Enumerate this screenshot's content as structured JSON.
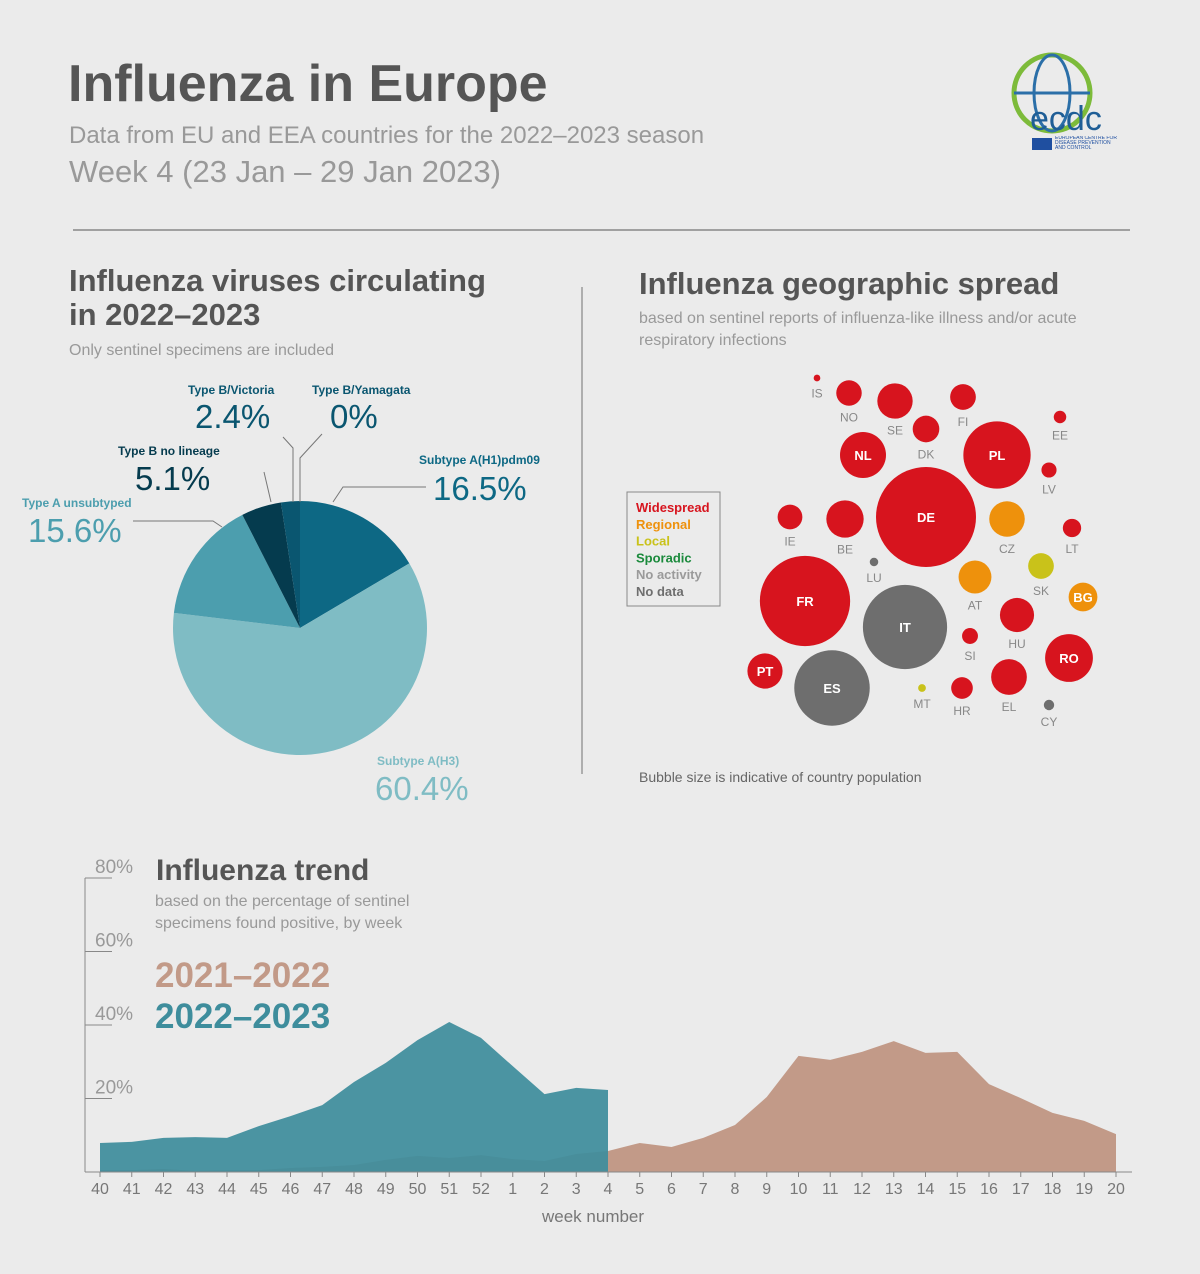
{
  "header": {
    "title": "Influenza in Europe",
    "subtitle": "Data from EU and EEA countries for the 2022–2023 season",
    "week": "Week 4 (23 Jan – 29 Jan 2023)",
    "logo": {
      "name": "ecdc",
      "org": "EUROPEAN CENTRE FOR DISEASE PREVENTION AND CONTROL"
    }
  },
  "chart_data": [
    {
      "type": "pie",
      "title": "Influenza viruses circulating in 2022–2023",
      "subtitle": "Only sentinel specimens are included",
      "categories": [
        "Subtype A(H1)pdm09",
        "Subtype A(H3)",
        "Type A unsubtyped",
        "Type B no lineage",
        "Type B/Victoria",
        "Type B/Yamagata"
      ],
      "values": [
        16.5,
        60.4,
        15.6,
        5.1,
        2.4,
        0
      ],
      "value_labels": [
        "16.5%",
        "60.4%",
        "15.6%",
        "5.1%",
        "2.4%",
        "0%"
      ],
      "colors": [
        "#0d6884",
        "#7fbcc4",
        "#4c9eae",
        "#053b4e",
        "#0a5670",
        "#0a5670"
      ]
    },
    {
      "type": "bubble",
      "title": "Influenza geographic spread",
      "subtitle": "based on sentinel reports of influenza-like illness and/or acute respiratory infections",
      "note": "Bubble size is indicative of country population",
      "levels": [
        {
          "name": "Widespread",
          "color": "#d7141e"
        },
        {
          "name": "Regional",
          "color": "#ee910c"
        },
        {
          "name": "Local",
          "color": "#c9c21a"
        },
        {
          "name": "Sporadic",
          "color": "#1b8a3c"
        },
        {
          "name": "No activity",
          "color": "#9a9a9a"
        },
        {
          "name": "No data",
          "color": "#6e6e6e"
        }
      ],
      "categories": [
        "IS",
        "NO",
        "SE",
        "FI",
        "EE",
        "DK",
        "NL",
        "PL",
        "LV",
        "IE",
        "BE",
        "DE",
        "CZ",
        "LT",
        "LU",
        "SK",
        "AT",
        "BG",
        "FR",
        "IT",
        "HU",
        "SI",
        "RO",
        "PT",
        "ES",
        "MT",
        "HR",
        "EL",
        "CY"
      ],
      "values": [
        0.37,
        5.4,
        10.4,
        5.5,
        1.3,
        5.9,
        17.6,
        37.7,
        1.9,
        5.1,
        11.6,
        83.2,
        10.5,
        2.8,
        0.6,
        5.5,
        9.0,
        6.9,
        67.8,
        59.0,
        9.7,
        2.1,
        19.0,
        10.3,
        47.4,
        0.5,
        3.9,
        10.6,
        0.9
      ],
      "spread": [
        "Widespread",
        "Widespread",
        "Widespread",
        "Widespread",
        "Widespread",
        "Widespread",
        "Widespread",
        "Widespread",
        "Widespread",
        "Widespread",
        "Widespread",
        "Widespread",
        "Regional",
        "Widespread",
        "No data",
        "Local",
        "Regional",
        "Regional",
        "Widespread",
        "No data",
        "Widespread",
        "Widespread",
        "Widespread",
        "Widespread",
        "No data",
        "Local",
        "Widespread",
        "Widespread",
        "No data"
      ]
    },
    {
      "type": "area",
      "title": "Influenza trend",
      "subtitle": "based on the percentage of sentinel specimens found positive, by week",
      "xlabel": "week number",
      "categories": [
        40,
        41,
        42,
        43,
        44,
        45,
        46,
        47,
        48,
        49,
        50,
        51,
        52,
        1,
        2,
        3,
        4,
        5,
        6,
        7,
        8,
        9,
        10,
        11,
        12,
        13,
        14,
        15,
        16,
        17,
        18,
        19,
        20
      ],
      "series": [
        {
          "name": "2021–2022",
          "color": "#c29a88",
          "values": [
            0.5,
            0.5,
            0.8,
            0.3,
            0.5,
            0.5,
            1.1,
            1.4,
            1.9,
            3.3,
            4.4,
            3.8,
            4.6,
            3.5,
            3.0,
            4.9,
            5.7,
            7.9,
            6.8,
            9.3,
            12.8,
            20.4,
            31.6,
            30.5,
            32.7,
            35.6,
            32.4,
            32.7,
            23.9,
            20.1,
            16.1,
            13.9,
            10.3
          ]
        },
        {
          "name": "2022–2023",
          "color": "#3e8d9c",
          "values": [
            7.9,
            8.2,
            9.3,
            9.5,
            9.3,
            12.5,
            15.2,
            18.2,
            24.5,
            29.7,
            35.9,
            40.8,
            36.5,
            28.8,
            21.2,
            22.9,
            22.3,
            null,
            null,
            null,
            null,
            null,
            null,
            null,
            null,
            null,
            null,
            null,
            null,
            null,
            null,
            null,
            null
          ]
        }
      ],
      "ylim": [
        0,
        80
      ],
      "yticks": [
        {
          "value": 20,
          "label": "20%"
        },
        {
          "value": 40,
          "label": "40%"
        },
        {
          "value": 60,
          "label": "60%"
        },
        {
          "value": 80,
          "label": "80%"
        }
      ]
    }
  ]
}
